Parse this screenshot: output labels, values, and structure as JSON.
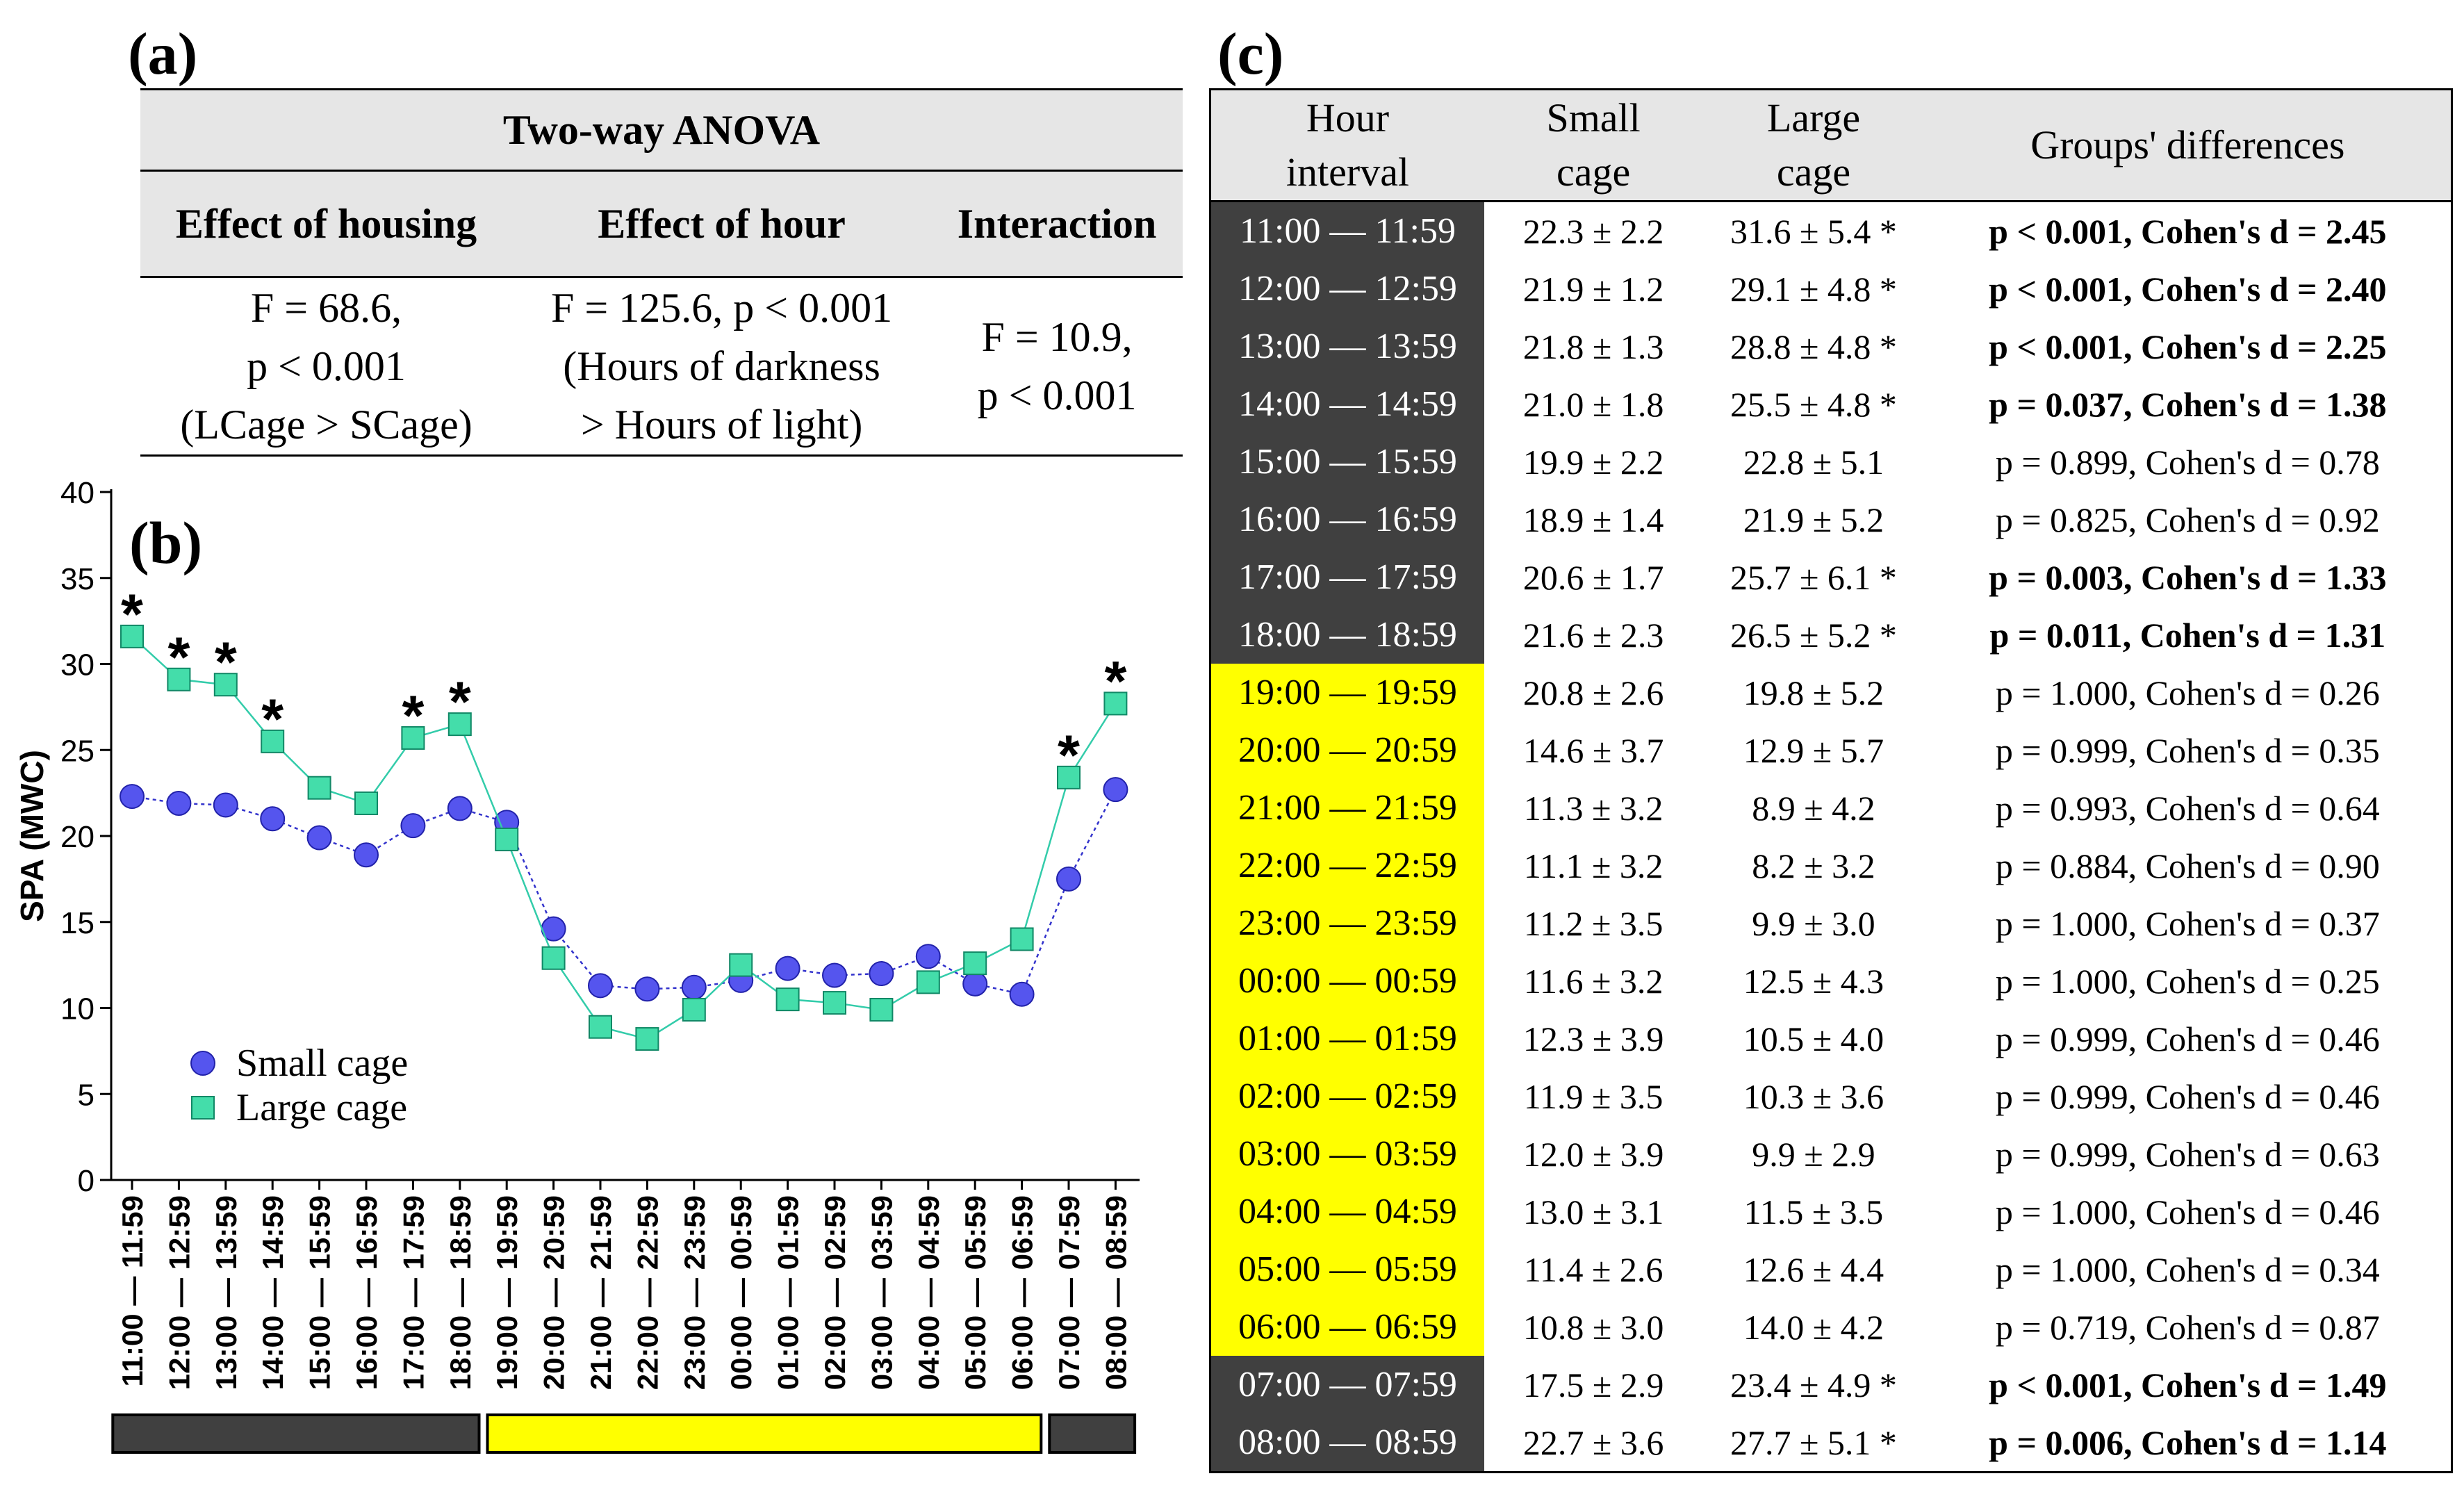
{
  "panel_labels": {
    "a": "(a)",
    "b": "(b)",
    "c": "(c)"
  },
  "anova": {
    "title": "Two-way ANOVA",
    "headers": [
      "Effect of housing",
      "Effect of hour",
      "Interaction"
    ],
    "cells": [
      [
        "F = 68.6,",
        "p < 0.001",
        "(LCage > SCage)"
      ],
      [
        "F = 125.6, p < 0.001",
        "(Hours of darkness",
        "> Hours of light)"
      ],
      [
        "F = 10.9,",
        "p < 0.001"
      ]
    ]
  },
  "table_c": {
    "headers": {
      "hour": [
        "Hour",
        "interval"
      ],
      "small": [
        "Small",
        "cage"
      ],
      "large": [
        "Large",
        "cage"
      ],
      "diff": "Groups' differences"
    },
    "rows": [
      {
        "hour": "11:00 — 11:59",
        "small": "22.3 ± 2.2",
        "large": "31.6 ± 5.4 *",
        "diff": "p < 0.001, Cohen's d = 2.45",
        "sig": true,
        "phase": "dark"
      },
      {
        "hour": "12:00 — 12:59",
        "small": "21.9 ± 1.2",
        "large": "29.1 ± 4.8 *",
        "diff": "p < 0.001, Cohen's d = 2.40",
        "sig": true,
        "phase": "dark"
      },
      {
        "hour": "13:00 — 13:59",
        "small": "21.8 ± 1.3",
        "large": "28.8 ± 4.8 *",
        "diff": "p < 0.001, Cohen's d = 2.25",
        "sig": true,
        "phase": "dark"
      },
      {
        "hour": "14:00 — 14:59",
        "small": "21.0 ± 1.8",
        "large": "25.5 ± 4.8 *",
        "diff": "p = 0.037, Cohen's d = 1.38",
        "sig": true,
        "phase": "dark"
      },
      {
        "hour": "15:00 — 15:59",
        "small": "19.9 ± 2.2",
        "large": "22.8 ± 5.1",
        "diff": "p = 0.899, Cohen's d = 0.78",
        "sig": false,
        "phase": "dark"
      },
      {
        "hour": "16:00 — 16:59",
        "small": "18.9 ± 1.4",
        "large": "21.9 ± 5.2",
        "diff": "p = 0.825, Cohen's d = 0.92",
        "sig": false,
        "phase": "dark"
      },
      {
        "hour": "17:00 — 17:59",
        "small": "20.6 ± 1.7",
        "large": "25.7 ± 6.1 *",
        "diff": "p = 0.003, Cohen's d = 1.33",
        "sig": true,
        "phase": "dark"
      },
      {
        "hour": "18:00 — 18:59",
        "small": "21.6 ± 2.3",
        "large": "26.5 ± 5.2 *",
        "diff": "p = 0.011, Cohen's d = 1.31",
        "sig": true,
        "phase": "dark"
      },
      {
        "hour": "19:00 — 19:59",
        "small": "20.8 ± 2.6",
        "large": "19.8 ± 5.2",
        "diff": "p = 1.000, Cohen's d = 0.26",
        "sig": false,
        "phase": "light"
      },
      {
        "hour": "20:00 — 20:59",
        "small": "14.6 ± 3.7",
        "large": "12.9 ± 5.7",
        "diff": "p = 0.999, Cohen's d = 0.35",
        "sig": false,
        "phase": "light"
      },
      {
        "hour": "21:00 — 21:59",
        "small": "11.3 ± 3.2",
        "large": "8.9 ± 4.2",
        "diff": "p = 0.993, Cohen's d = 0.64",
        "sig": false,
        "phase": "light"
      },
      {
        "hour": "22:00 — 22:59",
        "small": "11.1 ± 3.2",
        "large": "8.2 ± 3.2",
        "diff": "p = 0.884, Cohen's d = 0.90",
        "sig": false,
        "phase": "light"
      },
      {
        "hour": "23:00 — 23:59",
        "small": "11.2 ± 3.5",
        "large": "9.9 ± 3.0",
        "diff": "p = 1.000, Cohen's d = 0.37",
        "sig": false,
        "phase": "light"
      },
      {
        "hour": "00:00 — 00:59",
        "small": "11.6 ± 3.2",
        "large": "12.5 ± 4.3",
        "diff": "p = 1.000, Cohen's d = 0.25",
        "sig": false,
        "phase": "light"
      },
      {
        "hour": "01:00 — 01:59",
        "small": "12.3 ± 3.9",
        "large": "10.5 ± 4.0",
        "diff": "p = 0.999, Cohen's d = 0.46",
        "sig": false,
        "phase": "light"
      },
      {
        "hour": "02:00 — 02:59",
        "small": "11.9 ± 3.5",
        "large": "10.3 ± 3.6",
        "diff": "p = 0.999, Cohen's d = 0.46",
        "sig": false,
        "phase": "light"
      },
      {
        "hour": "03:00 — 03:59",
        "small": "12.0 ± 3.9",
        "large": "9.9 ± 2.9",
        "diff": "p = 0.999, Cohen's d = 0.63",
        "sig": false,
        "phase": "light"
      },
      {
        "hour": "04:00 — 04:59",
        "small": "13.0 ± 3.1",
        "large": "11.5 ± 3.5",
        "diff": "p = 1.000, Cohen's d = 0.46",
        "sig": false,
        "phase": "light"
      },
      {
        "hour": "05:00 — 05:59",
        "small": "11.4 ± 2.6",
        "large": "12.6 ± 4.4",
        "diff": "p = 1.000, Cohen's d = 0.34",
        "sig": false,
        "phase": "light"
      },
      {
        "hour": "06:00 — 06:59",
        "small": "10.8 ± 3.0",
        "large": "14.0 ± 4.2",
        "diff": "p = 0.719, Cohen's d = 0.87",
        "sig": false,
        "phase": "light"
      },
      {
        "hour": "07:00 — 07:59",
        "small": "17.5 ± 2.9",
        "large": "23.4 ± 4.9 *",
        "diff": "p < 0.001, Cohen's d = 1.49",
        "sig": true,
        "phase": "dark"
      },
      {
        "hour": "08:00 — 08:59",
        "small": "22.7 ± 3.6",
        "large": "27.7 ± 5.1 *",
        "diff": "p = 0.006, Cohen's d = 1.14",
        "sig": true,
        "phase": "dark"
      }
    ]
  },
  "chart_data": {
    "type": "line",
    "ylabel": "SPA (MWC)",
    "xlabel": "",
    "ylim": [
      0,
      40
    ],
    "yticks": [
      0,
      5,
      10,
      15,
      20,
      25,
      30,
      35,
      40
    ],
    "categories": [
      "11:00 — 11:59",
      "12:00 — 12:59",
      "13:00 — 13:59",
      "14:00 — 14:59",
      "15:00 — 15:59",
      "16:00 — 16:59",
      "17:00 — 17:59",
      "18:00 — 18:59",
      "19:00 — 19:59",
      "20:00 — 20:59",
      "21:00 — 21:59",
      "22:00 — 22:59",
      "23:00 — 23:59",
      "00:00 — 00:59",
      "01:00 — 01:59",
      "02:00 — 02:59",
      "03:00 — 03:59",
      "04:00 — 04:59",
      "05:00 — 05:59",
      "06:00 — 06:59",
      "07:00 — 07:59",
      "08:00 — 08:59"
    ],
    "series": [
      {
        "name": "Small cage",
        "marker": "circle",
        "color": "#5555ee",
        "values": [
          22.3,
          21.9,
          21.8,
          21.0,
          19.9,
          18.9,
          20.6,
          21.6,
          20.8,
          14.6,
          11.3,
          11.1,
          11.2,
          11.6,
          12.3,
          11.9,
          12.0,
          13.0,
          11.4,
          10.8,
          17.5,
          22.7
        ]
      },
      {
        "name": "Large cage",
        "marker": "square",
        "color": "#44ddaa",
        "values": [
          31.6,
          29.1,
          28.8,
          25.5,
          22.8,
          21.9,
          25.7,
          26.5,
          19.8,
          12.9,
          8.9,
          8.2,
          9.9,
          12.5,
          10.5,
          10.3,
          9.9,
          11.5,
          12.6,
          14.0,
          23.4,
          27.7
        ]
      }
    ],
    "significance_marker": "*",
    "significant": [
      true,
      true,
      true,
      true,
      false,
      false,
      true,
      true,
      false,
      false,
      false,
      false,
      false,
      false,
      false,
      false,
      false,
      false,
      false,
      false,
      true,
      true
    ],
    "phases": [
      {
        "name": "dark",
        "from": 0,
        "to": 7,
        "color": "#404040"
      },
      {
        "name": "light",
        "from": 8,
        "to": 19,
        "color": "#ffff00"
      },
      {
        "name": "dark",
        "from": 20,
        "to": 21,
        "color": "#404040"
      }
    ],
    "legend_position": "bottom-left"
  }
}
